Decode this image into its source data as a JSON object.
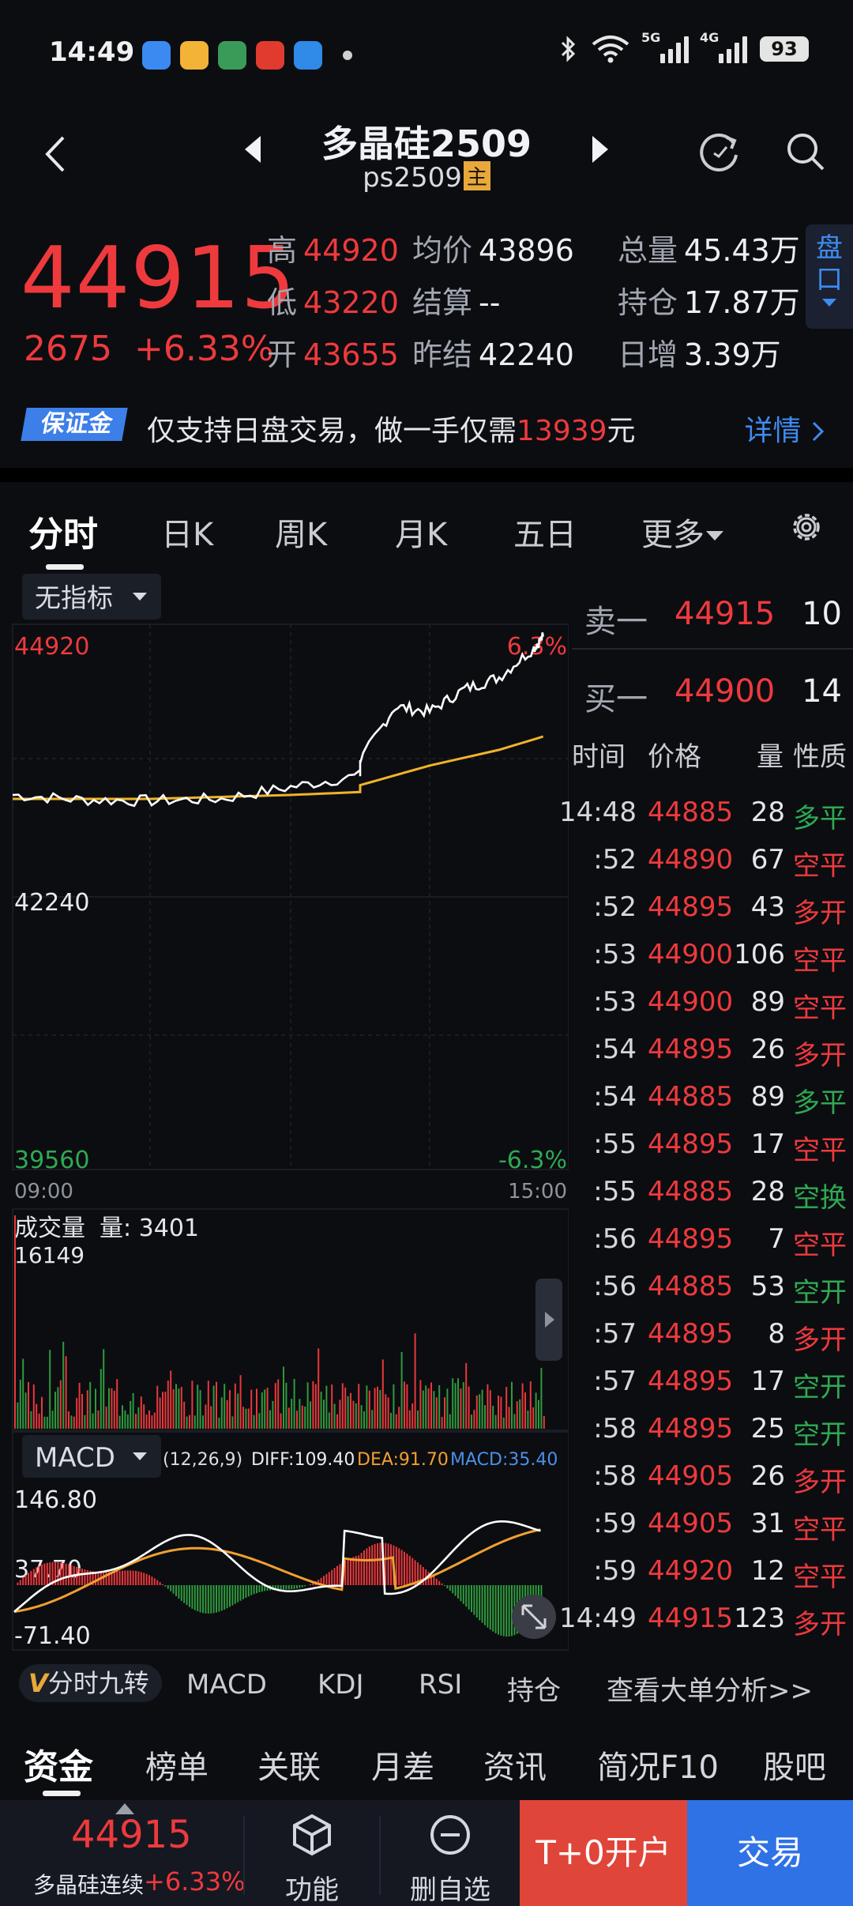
{
  "status_bar": {
    "time": "14:49",
    "app_icons": [
      "#3b8af2",
      "#f3b337",
      "#3a9a58",
      "#e03b2e",
      "#2f8ae8"
    ],
    "signal1_tag": "5G",
    "signal2_tag": "4G",
    "battery": "93"
  },
  "header": {
    "title": "多晶硅2509",
    "code": "ps2509",
    "main_tag": "主"
  },
  "quote": {
    "last": "44915",
    "change": "2675",
    "change_pct": "+6.33%",
    "high_label": "高",
    "high": "44920",
    "low_label": "低",
    "low": "43220",
    "open_label": "开",
    "open": "43655",
    "avg_label": "均价",
    "avg": "43896",
    "settle_label": "结算",
    "settle": "--",
    "prev_settle_label": "昨结",
    "prev_settle": "42240",
    "volume_label": "总量",
    "volume": "45.43万",
    "oi_label": "持仓",
    "oi": "17.87万",
    "oi_chg_label": "日增",
    "oi_chg": "3.39万",
    "pankou_tab": "盘口"
  },
  "margin_banner": {
    "badge": "保证金",
    "text_before": "仅支持日盘交易，做一手仅需",
    "amount": "13939",
    "text_after": "元",
    "detail": "详情"
  },
  "chart_tabs": [
    "分时",
    "日K",
    "周K",
    "月K",
    "五日",
    "更多"
  ],
  "chart": {
    "indicator_dropdown": "无指标",
    "y_top": "44920",
    "y_mid": "42240",
    "y_bottom": "39560",
    "pct_top": "6.3%",
    "pct_bottom": "-6.3%",
    "time_start": "09:00",
    "time_end": "15:00",
    "volume_label": "成交量",
    "volume_value_label": "量: 3401",
    "volume_max": "16149",
    "macd_dropdown": "MACD",
    "macd_params": "(12,26,9)",
    "diff": "DIFF:109.40",
    "dea": "DEA:91.70",
    "macd": "MACD:35.40",
    "macd_top": "146.80",
    "macd_mid": "37.70",
    "macd_bottom": "-71.40",
    "colors": {
      "price": "#ffffff",
      "avg": "#f0b429",
      "up": "#e8383b",
      "down": "#2f9a3d",
      "dea": "#f0a030",
      "macd_label": "#4a90e8"
    }
  },
  "chart_data": {
    "type": "line",
    "x_range": [
      "09:00",
      "15:00"
    ],
    "ylim": [
      39560,
      44920
    ],
    "series": [
      {
        "name": "",
        "x": [
          "09:00",
          "09:30",
          "10:00",
          "10:30",
          "11:00",
          "11:30",
          "13:30",
          "13:45",
          "14:00",
          "14:15",
          "14:30",
          "14:45",
          "14:49"
        ],
        "values": [
          43300,
          43250,
          43240,
          43260,
          43380,
          43500,
          43650,
          44200,
          44150,
          44380,
          44500,
          44800,
          44915
        ]
      },
      {
        "name": "",
        "x": [
          "09:00",
          "10:00",
          "11:00",
          "11:30",
          "13:30",
          "14:00",
          "14:30",
          "14:49"
        ],
        "values": [
          43260,
          43260,
          43300,
          43330,
          43400,
          43600,
          43760,
          43896
        ]
      }
    ]
  },
  "order_book": {
    "ask_label": "卖一",
    "ask_price": "44915",
    "ask_vol": "10",
    "bid_label": "买一",
    "bid_price": "44900",
    "bid_vol": "14"
  },
  "trades_header": {
    "time": "时间",
    "price": "价格",
    "vol": "量",
    "nature": "性质"
  },
  "trades": [
    {
      "t": "14:48",
      "p": "44885",
      "v": "28",
      "n": "多平",
      "c": "green"
    },
    {
      "t": ":52",
      "p": "44890",
      "v": "67",
      "n": "空平",
      "c": "red"
    },
    {
      "t": ":52",
      "p": "44895",
      "v": "43",
      "n": "多开",
      "c": "red"
    },
    {
      "t": ":53",
      "p": "44900",
      "v": "106",
      "n": "空平",
      "c": "red"
    },
    {
      "t": ":53",
      "p": "44900",
      "v": "89",
      "n": "空平",
      "c": "red"
    },
    {
      "t": ":54",
      "p": "44895",
      "v": "26",
      "n": "多开",
      "c": "red"
    },
    {
      "t": ":54",
      "p": "44885",
      "v": "89",
      "n": "多平",
      "c": "green"
    },
    {
      "t": ":55",
      "p": "44895",
      "v": "17",
      "n": "空平",
      "c": "red"
    },
    {
      "t": ":55",
      "p": "44885",
      "v": "28",
      "n": "空换",
      "c": "green"
    },
    {
      "t": ":56",
      "p": "44895",
      "v": "7",
      "n": "空平",
      "c": "red"
    },
    {
      "t": ":56",
      "p": "44885",
      "v": "53",
      "n": "空开",
      "c": "green"
    },
    {
      "t": ":57",
      "p": "44895",
      "v": "8",
      "n": "多开",
      "c": "red"
    },
    {
      "t": ":57",
      "p": "44895",
      "v": "17",
      "n": "空开",
      "c": "green"
    },
    {
      "t": ":58",
      "p": "44895",
      "v": "25",
      "n": "空开",
      "c": "green"
    },
    {
      "t": ":58",
      "p": "44905",
      "v": "26",
      "n": "多开",
      "c": "red"
    },
    {
      "t": ":59",
      "p": "44905",
      "v": "31",
      "n": "空平",
      "c": "red"
    },
    {
      "t": ":59",
      "p": "44920",
      "v": "12",
      "n": "空平",
      "c": "red"
    },
    {
      "t": "14:49",
      "p": "44915",
      "v": "123",
      "n": "多开",
      "c": "red"
    }
  ],
  "indicator_strip": {
    "jiuzhuan_v": "V",
    "jiuzhuan": "分时九转",
    "items": [
      "MACD",
      "KDJ",
      "RSI",
      "持仓"
    ],
    "big_order": "查看大单分析>>"
  },
  "bottom_tabs": [
    "资金",
    "榜单",
    "关联",
    "月差",
    "资讯",
    "简况F10",
    "股吧"
  ],
  "action_bar": {
    "price": "44915",
    "name": "多晶硅连续",
    "pct": "+6.33%",
    "function": "功能",
    "remove_fav": "删自选",
    "t0_open": "T+0开户",
    "trade": "交易"
  }
}
